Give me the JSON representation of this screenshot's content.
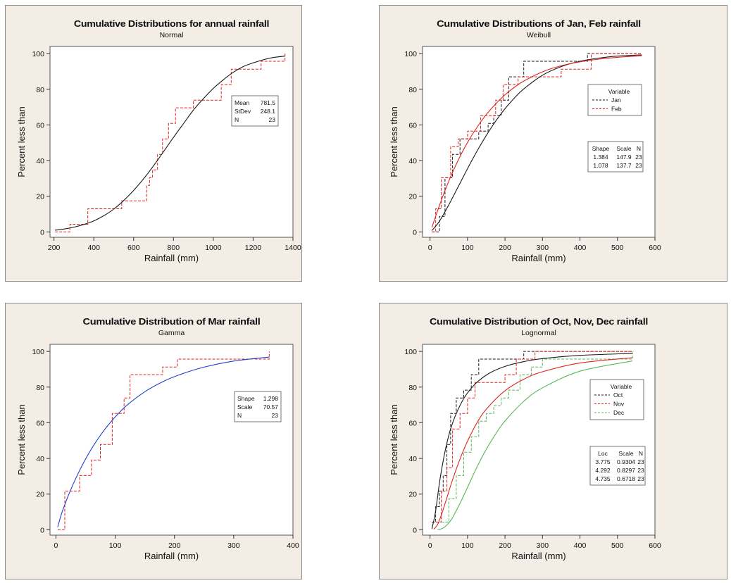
{
  "chart_data": [
    {
      "type": "line",
      "title": "Cumulative Distributions for annual rainfall",
      "subtitle": "Normal",
      "xlabel": "Rainfall (mm)",
      "ylabel": "Percent less than",
      "xlim": [
        180,
        1400
      ],
      "ylim": [
        -3,
        104
      ],
      "xticks": [
        200,
        400,
        600,
        800,
        1000,
        1200,
        1400
      ],
      "yticks": [
        0,
        20,
        40,
        60,
        80,
        100
      ],
      "grid": false,
      "legend": null,
      "stats_box": {
        "placement": "right",
        "headers": [],
        "rows": [
          [
            "Mean",
            "781.5"
          ],
          [
            "StDev",
            "248.1"
          ],
          [
            "N",
            "23"
          ]
        ]
      },
      "series": [
        {
          "color": "#e0231e",
          "dash": "dashed",
          "curve": "step",
          "x": [
            205,
            280,
            370,
            470,
            540,
            640,
            665,
            680,
            695,
            720,
            745,
            775,
            810,
            900,
            1040,
            1090,
            1200,
            1240,
            1360
          ],
          "y": [
            0,
            4.3,
            13,
            13,
            17.4,
            17.4,
            26.1,
            30.4,
            34.8,
            43.5,
            52.2,
            60.9,
            69.6,
            73.9,
            82.6,
            91.3,
            91.3,
            95.7,
            100
          ]
        },
        {
          "color": "#1a1a1a",
          "dash": "solid",
          "curve": "smooth",
          "x": [
            205,
            250,
            300,
            350,
            400,
            450,
            500,
            550,
            600,
            650,
            700,
            750,
            800,
            850,
            900,
            950,
            1000,
            1050,
            1100,
            1150,
            1200,
            1250,
            1300,
            1360
          ],
          "y": [
            1,
            1.6,
            2.7,
            4.2,
            6.2,
            9.1,
            12.8,
            17.6,
            23.3,
            29.8,
            37.1,
            45,
            53,
            60.7,
            68.3,
            74.7,
            80.5,
            85.3,
            89.5,
            92.7,
            94.8,
            96.5,
            97.8,
            98.6
          ]
        }
      ]
    },
    {
      "type": "line",
      "title": "Cumulative Distributions  of Jan, Feb rainfall",
      "subtitle": "Weibull",
      "xlabel": "Rainfall (mm)",
      "ylabel": "Percent less than",
      "xlim": [
        -20,
        600
      ],
      "ylim": [
        -3,
        104
      ],
      "xticks": [
        0,
        100,
        200,
        300,
        400,
        500,
        600
      ],
      "yticks": [
        0,
        20,
        40,
        60,
        80,
        100
      ],
      "grid": false,
      "legend": {
        "title": "Variable",
        "placement": "right",
        "entries": [
          "Jan",
          "Feb"
        ]
      },
      "stats_box": {
        "placement": "right",
        "headers": [
          "Shape",
          "Scale",
          "N"
        ],
        "rows": [
          [
            "1.384",
            "147.9",
            "23"
          ],
          [
            "1.078",
            "137.7",
            "23"
          ]
        ]
      },
      "series": [
        {
          "name": "Jan",
          "color": "#1a1a1a",
          "dash": "dashed",
          "curve": "step",
          "x": [
            5,
            25,
            40,
            60,
            80,
            100,
            130,
            155,
            170,
            190,
            210,
            250,
            270,
            420,
            565
          ],
          "y": [
            0,
            8.7,
            30.4,
            43.5,
            52.2,
            52.2,
            56.5,
            60.9,
            65.2,
            73.9,
            87,
            95.7,
            95.7,
            100,
            100
          ]
        },
        {
          "name": "Feb",
          "color": "#e0231e",
          "dash": "dashed",
          "curve": "step",
          "x": [
            5,
            15,
            30,
            55,
            75,
            100,
            135,
            175,
            195,
            210,
            235,
            290,
            350,
            430,
            565
          ],
          "y": [
            0,
            13,
            30.4,
            47.8,
            52.2,
            56.5,
            65.2,
            73.9,
            82.6,
            82.6,
            87,
            87,
            91.3,
            100,
            100
          ]
        },
        {
          "name": "Jan",
          "color": "#1a1a1a",
          "dash": "solid",
          "curve": "smooth",
          "x": [
            5,
            25,
            50,
            75,
            100,
            125,
            150,
            175,
            200,
            225,
            250,
            300,
            350,
            400,
            450,
            500,
            565
          ],
          "y": [
            0.8,
            6,
            15.2,
            25.3,
            35.5,
            45.2,
            54.1,
            62.1,
            69.1,
            75.1,
            80.2,
            87.9,
            92.7,
            95.7,
            97.5,
            98.6,
            99.3
          ]
        },
        {
          "name": "Feb",
          "color": "#e0231e",
          "dash": "solid",
          "curve": "smooth",
          "x": [
            5,
            25,
            50,
            75,
            100,
            125,
            150,
            175,
            200,
            225,
            250,
            300,
            350,
            400,
            450,
            500,
            565
          ],
          "y": [
            2.6,
            14.8,
            28.5,
            40.2,
            50.2,
            58.6,
            65.8,
            71.8,
            76.9,
            81.1,
            84.6,
            89.8,
            93.2,
            95.4,
            96.9,
            97.9,
            98.8
          ]
        }
      ]
    },
    {
      "type": "line",
      "title": "Cumulative Distribution  of Mar rainfall",
      "subtitle": "Gamma",
      "xlabel": "Rainfall (mm)",
      "ylabel": "Percent less than",
      "xlim": [
        -10,
        400
      ],
      "ylim": [
        -3,
        104
      ],
      "xticks": [
        0,
        100,
        200,
        300,
        400
      ],
      "yticks": [
        0,
        20,
        40,
        60,
        80,
        100
      ],
      "grid": false,
      "legend": null,
      "stats_box": {
        "placement": "right",
        "headers": [],
        "rows": [
          [
            "Shape",
            "1.298"
          ],
          [
            "Scale",
            "70.57"
          ],
          [
            "N",
            "23"
          ]
        ]
      },
      "series": [
        {
          "color": "#e0231e",
          "dash": "dashed",
          "curve": "step",
          "x": [
            3,
            15,
            40,
            60,
            75,
            95,
            115,
            125,
            180,
            205,
            360
          ],
          "y": [
            0,
            21.7,
            30.4,
            39.1,
            47.8,
            65.2,
            73.9,
            87,
            91.3,
            95.7,
            100
          ]
        },
        {
          "color": "#1f3fd0",
          "dash": "solid",
          "curve": "smooth",
          "x": [
            3,
            10,
            20,
            30,
            45,
            60,
            80,
            100,
            120,
            150,
            180,
            210,
            250,
            300,
            360
          ],
          "y": [
            1.5,
            9.5,
            18.4,
            26.3,
            36.6,
            45.4,
            55.2,
            63.3,
            69.9,
            77.4,
            83,
            87.1,
            91.2,
            94.6,
            96.9
          ]
        }
      ]
    },
    {
      "type": "line",
      "title": "Cumulative Distribution  of Oct, Nov, Dec rainfall",
      "subtitle": "Lognormal",
      "xlabel": "Rainfall (mm)",
      "ylabel": "Percent less than",
      "xlim": [
        -20,
        600
      ],
      "ylim": [
        -3,
        104
      ],
      "xticks": [
        0,
        100,
        200,
        300,
        400,
        500,
        600
      ],
      "yticks": [
        0,
        20,
        40,
        60,
        80,
        100
      ],
      "grid": false,
      "legend": {
        "title": "Variable",
        "placement": "right",
        "entries": [
          "Oct",
          "Nov",
          "Dec"
        ]
      },
      "stats_box": {
        "placement": "right",
        "headers": [
          "Loc",
          "Scale",
          "N"
        ],
        "rows": [
          [
            "3.775",
            "0.9304",
            "23"
          ],
          [
            "4.292",
            "0.8297",
            "23"
          ],
          [
            "4.735",
            "0.6718",
            "23"
          ]
        ]
      },
      "series": [
        {
          "name": "Oct",
          "color": "#1a1a1a",
          "dash": "dashed",
          "curve": "step",
          "x": [
            5,
            15,
            25,
            35,
            45,
            55,
            70,
            90,
            110,
            130,
            160,
            250,
            320,
            540
          ],
          "y": [
            4.3,
            13,
            21.7,
            30.4,
            47.8,
            65.2,
            73.9,
            78.3,
            87,
            95.7,
            95.7,
            100,
            100,
            100
          ]
        },
        {
          "name": "Nov",
          "color": "#e0231e",
          "dash": "dashed",
          "curve": "step",
          "x": [
            15,
            30,
            45,
            60,
            80,
            100,
            120,
            140,
            200,
            230,
            280,
            540
          ],
          "y": [
            4.3,
            21.7,
            34.8,
            56.5,
            65.2,
            73.9,
            82.6,
            82.6,
            87,
            95.7,
            100,
            100
          ]
        },
        {
          "name": "Dec",
          "color": "#58b858",
          "dash": "dashed",
          "curve": "step",
          "x": [
            30,
            50,
            70,
            90,
            110,
            130,
            150,
            170,
            190,
            210,
            240,
            270,
            300,
            540
          ],
          "y": [
            4.3,
            17.4,
            30.4,
            43.5,
            52.2,
            60.9,
            65.2,
            69.6,
            73.9,
            78.3,
            87,
            91.3,
            95.7,
            100
          ]
        },
        {
          "name": "Oct",
          "color": "#1a1a1a",
          "dash": "solid",
          "curve": "smooth",
          "x": [
            5,
            15,
            25,
            35,
            45,
            55,
            70,
            90,
            110,
            130,
            160,
            200,
            250,
            300,
            400,
            540
          ],
          "y": [
            0.4,
            10.6,
            26.2,
            38.6,
            48.7,
            56.6,
            65.2,
            73.6,
            79.4,
            83.6,
            88,
            91.6,
            94.3,
            96,
            97.8,
            98.9
          ]
        },
        {
          "name": "Nov",
          "color": "#e0231e",
          "dash": "solid",
          "curve": "smooth",
          "x": [
            10,
            20,
            30,
            40,
            50,
            60,
            80,
            100,
            125,
            150,
            200,
            250,
            300,
            400,
            540
          ],
          "y": [
            0.3,
            2.9,
            8.2,
            14.6,
            21.4,
            28,
            39.7,
            49.7,
            59.9,
            67.6,
            78,
            84.4,
            88.6,
            93.5,
            96.5
          ]
        },
        {
          "name": "Dec",
          "color": "#58b858",
          "dash": "solid",
          "curve": "smooth",
          "x": [
            20,
            30,
            40,
            50,
            60,
            80,
            100,
            125,
            150,
            175,
            200,
            250,
            300,
            400,
            540
          ],
          "y": [
            0.1,
            0.5,
            1.7,
            3.9,
            6.8,
            14.8,
            23.8,
            35.1,
            45.1,
            53.7,
            61,
            72,
            79.6,
            88.9,
            94.7
          ]
        }
      ]
    }
  ]
}
